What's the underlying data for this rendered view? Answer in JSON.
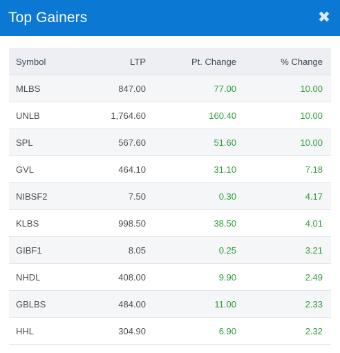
{
  "header": {
    "title": "Top Gainers",
    "close_glyph": "✖"
  },
  "colors": {
    "header_bg": "#0b78d4",
    "gain": "#2e9a3c"
  },
  "table": {
    "columns": [
      "Symbol",
      "LTP",
      "Pt. Change",
      "% Change"
    ],
    "rows": [
      {
        "symbol": "MLBS",
        "ltp": "847.00",
        "pt_change": "77.00",
        "pct_change": "10.00"
      },
      {
        "symbol": "UNLB",
        "ltp": "1,764.60",
        "pt_change": "160.40",
        "pct_change": "10.00"
      },
      {
        "symbol": "SPL",
        "ltp": "567.60",
        "pt_change": "51.60",
        "pct_change": "10.00"
      },
      {
        "symbol": "GVL",
        "ltp": "464.10",
        "pt_change": "31.10",
        "pct_change": "7.18"
      },
      {
        "symbol": "NIBSF2",
        "ltp": "7.50",
        "pt_change": "0.30",
        "pct_change": "4.17"
      },
      {
        "symbol": "KLBS",
        "ltp": "998.50",
        "pt_change": "38.50",
        "pct_change": "4.01"
      },
      {
        "symbol": "GIBF1",
        "ltp": "8.05",
        "pt_change": "0.25",
        "pct_change": "3.21"
      },
      {
        "symbol": "NHDL",
        "ltp": "408.00",
        "pt_change": "9.90",
        "pct_change": "2.49"
      },
      {
        "symbol": "GBLBS",
        "ltp": "484.00",
        "pt_change": "11.00",
        "pct_change": "2.33"
      },
      {
        "symbol": "HHL",
        "ltp": "304.90",
        "pt_change": "6.90",
        "pct_change": "2.32"
      }
    ]
  }
}
